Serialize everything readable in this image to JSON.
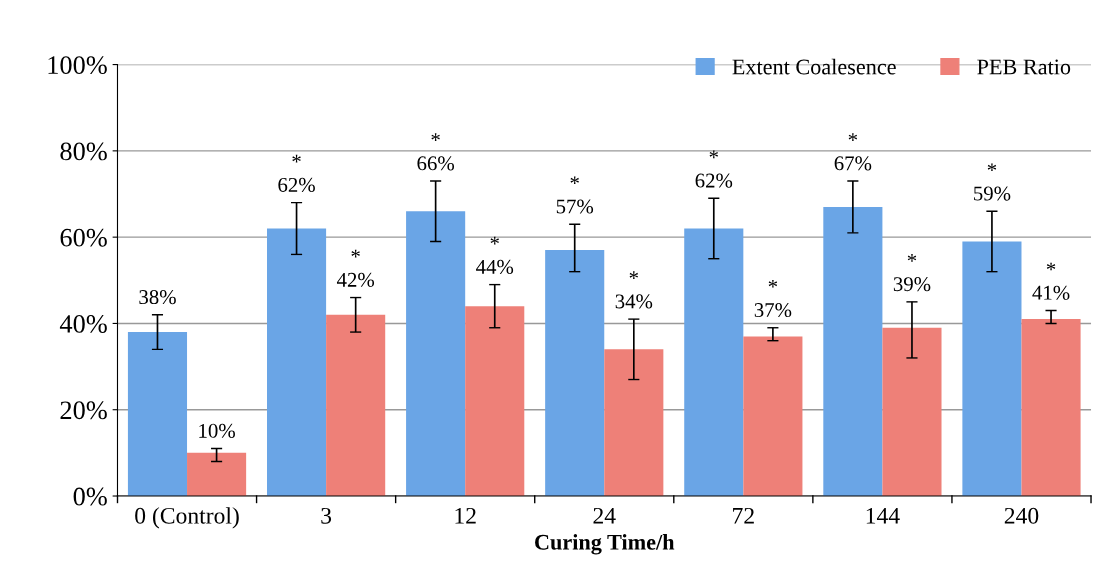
{
  "chart_data": {
    "type": "bar",
    "xlabel": "Curing Time/h",
    "categories": [
      "0 (Control)",
      "3",
      "12",
      "24",
      "72",
      "144",
      "240"
    ],
    "series": [
      {
        "name": "Extent Coalesence",
        "color": "#6aa5e6",
        "values": [
          38,
          62,
          66,
          57,
          62,
          67,
          59
        ],
        "errors": [
          [
            34,
            42
          ],
          [
            56,
            68
          ],
          [
            59,
            73
          ],
          [
            52,
            63
          ],
          [
            55,
            69
          ],
          [
            61,
            73
          ],
          [
            52,
            66
          ]
        ],
        "value_labels": [
          "38%",
          "*\n62%",
          "*\n66%",
          "*\n57%",
          "*\n62%",
          "*\n67%",
          "*\n59%"
        ]
      },
      {
        "name": "PEB Ratio",
        "color": "#ee8078",
        "values": [
          10,
          42,
          44,
          34,
          37,
          39,
          41
        ],
        "errors": [
          [
            8,
            11
          ],
          [
            38,
            46
          ],
          [
            39,
            49
          ],
          [
            27,
            41
          ],
          [
            36,
            39
          ],
          [
            32,
            45
          ],
          [
            40,
            43
          ]
        ],
        "value_labels": [
          "10%",
          "*\n42%",
          "*\n44%",
          "*\n34%",
          "*\n37%",
          "*\n39%",
          "*\n41%"
        ]
      }
    ],
    "ylim": [
      0,
      100
    ],
    "yticks": [
      {
        "value": 0,
        "label": "0%"
      },
      {
        "value": 20,
        "label": "20%"
      },
      {
        "value": 40,
        "label": "40%"
      },
      {
        "value": 60,
        "label": "60%"
      },
      {
        "value": 80,
        "label": "80%"
      },
      {
        "value": 100,
        "label": "100%"
      }
    ],
    "grid": "y",
    "legend": "top right"
  }
}
